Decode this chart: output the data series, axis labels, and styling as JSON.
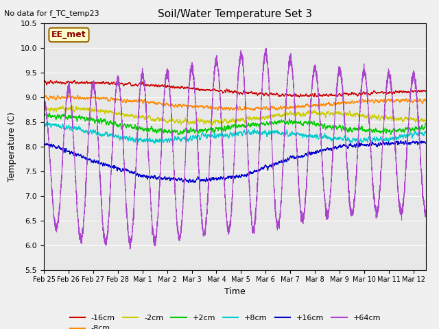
{
  "title": "Soil/Water Temperature Set 3",
  "xlabel": "Time",
  "ylabel": "Temperature (C)",
  "annotation": "No data for f_TC_temp23",
  "legend_label": "EE_met",
  "ylim": [
    5.5,
    10.5
  ],
  "tick_labels": [
    "Feb 25",
    "Feb 26",
    "Feb 27",
    "Feb 28",
    "Mar 1",
    "Mar 2",
    "Mar 3",
    "Mar 4",
    "Mar 5",
    "Mar 6",
    "Mar 7",
    "Mar 8",
    "Mar 9",
    "Mar 10",
    "Mar 11",
    "Mar 12"
  ],
  "colors": {
    "-16cm": "#cc0000",
    "-8cm": "#ff8800",
    "-2cm": "#cccc00",
    "+2cm": "#00cc00",
    "+8cm": "#00cccc",
    "+16cm": "#0000cc",
    "+64cm": "#aa44cc"
  },
  "bg_color": "#e8e8e8",
  "fig_bg": "#f0f0f0",
  "grid_color": "#ffffff",
  "n_points": 5000,
  "days": 15.5
}
